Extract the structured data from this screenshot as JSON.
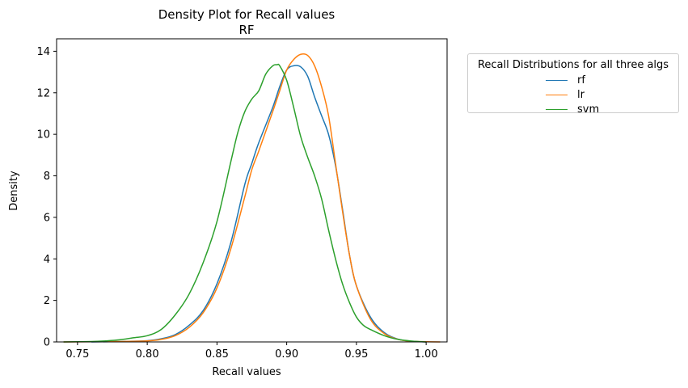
{
  "chart_data": {
    "type": "line",
    "title": "Density Plot for Recall values",
    "subtitle": "RF",
    "xlabel": "Recall values",
    "ylabel": "Density",
    "xlim": [
      0.735,
      1.015
    ],
    "ylim": [
      0,
      14.6
    ],
    "xticks": [
      "0.75",
      "0.80",
      "0.85",
      "0.90",
      "0.95",
      "1.00"
    ],
    "yticks": [
      "0",
      "2",
      "4",
      "6",
      "8",
      "10",
      "12",
      "14"
    ],
    "grid": false,
    "legend": {
      "title": "Recall Distributions for all three algs",
      "placement": "outside-top-right"
    },
    "series": [
      {
        "name": "rf",
        "color": "#1f77b4",
        "x": [
          0.76,
          0.78,
          0.8,
          0.81,
          0.82,
          0.83,
          0.84,
          0.85,
          0.86,
          0.87,
          0.875,
          0.88,
          0.89,
          0.895,
          0.9,
          0.905,
          0.91,
          0.915,
          0.92,
          0.925,
          0.93,
          0.935,
          0.94,
          0.945,
          0.95,
          0.96,
          0.97,
          0.98,
          0.99,
          1.0
        ],
        "y": [
          0.0,
          0.02,
          0.06,
          0.15,
          0.35,
          0.8,
          1.5,
          2.8,
          4.8,
          7.6,
          8.6,
          9.6,
          11.3,
          12.3,
          13.1,
          13.3,
          13.25,
          12.8,
          11.8,
          10.9,
          10.0,
          8.5,
          6.4,
          4.2,
          2.7,
          1.2,
          0.45,
          0.13,
          0.03,
          0.0
        ]
      },
      {
        "name": "lr",
        "color": "#ff7f0e",
        "x": [
          0.74,
          0.76,
          0.78,
          0.8,
          0.81,
          0.82,
          0.83,
          0.84,
          0.85,
          0.86,
          0.87,
          0.875,
          0.88,
          0.89,
          0.895,
          0.9,
          0.905,
          0.91,
          0.915,
          0.92,
          0.925,
          0.93,
          0.935,
          0.94,
          0.945,
          0.95,
          0.96,
          0.97,
          0.98,
          0.99,
          1.0,
          1.01
        ],
        "y": [
          0.0,
          0.01,
          0.02,
          0.05,
          0.12,
          0.3,
          0.7,
          1.4,
          2.6,
          4.5,
          7.0,
          8.3,
          9.2,
          11.1,
          12.1,
          13.1,
          13.6,
          13.85,
          13.8,
          13.3,
          12.3,
          10.9,
          8.6,
          6.3,
          4.2,
          2.7,
          1.1,
          0.4,
          0.12,
          0.03,
          0.01,
          0.0
        ]
      },
      {
        "name": "svm",
        "color": "#2ca02c",
        "x": [
          0.74,
          0.76,
          0.77,
          0.78,
          0.79,
          0.8,
          0.81,
          0.82,
          0.83,
          0.84,
          0.85,
          0.86,
          0.865,
          0.87,
          0.875,
          0.88,
          0.885,
          0.89,
          0.893,
          0.895,
          0.9,
          0.905,
          0.91,
          0.915,
          0.92,
          0.925,
          0.93,
          0.935,
          0.94,
          0.945,
          0.95,
          0.955,
          0.96,
          0.97,
          0.98,
          0.99,
          1.0
        ],
        "y": [
          0.0,
          0.02,
          0.05,
          0.1,
          0.2,
          0.3,
          0.6,
          1.3,
          2.3,
          3.8,
          5.8,
          8.7,
          10.1,
          11.1,
          11.7,
          12.1,
          12.9,
          13.3,
          13.35,
          13.3,
          12.6,
          11.3,
          9.9,
          8.9,
          8.0,
          6.9,
          5.4,
          4.0,
          2.8,
          1.9,
          1.2,
          0.8,
          0.6,
          0.3,
          0.12,
          0.04,
          0.0
        ]
      }
    ]
  }
}
